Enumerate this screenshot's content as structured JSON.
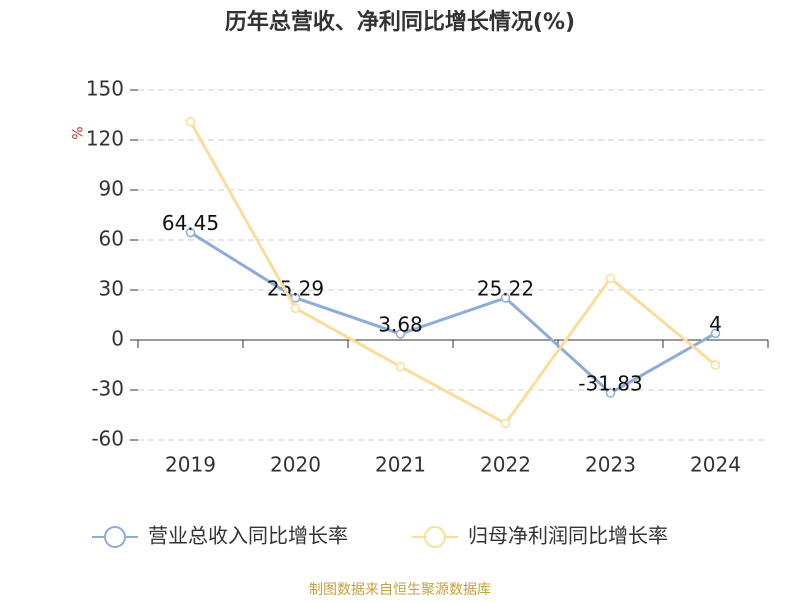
{
  "chart_data": {
    "type": "line",
    "title": "历年总营收、净利同比增长情况(%)",
    "y_axis_label": "%",
    "categories": [
      "2019",
      "2020",
      "2021",
      "2022",
      "2023",
      "2024"
    ],
    "series": [
      {
        "name": "营业总收入同比增长率",
        "color": "#8eacd8",
        "values": [
          64.45,
          25.29,
          3.68,
          25.22,
          -31.83,
          4
        ],
        "data_labels": true
      },
      {
        "name": "归母净利润同比增长率",
        "color": "#fcdc9c",
        "values": [
          131,
          19,
          -16,
          -50,
          37,
          -15
        ],
        "data_labels": false
      }
    ],
    "ylim": [
      -60,
      150
    ],
    "yticks": [
      -60,
      -30,
      0,
      30,
      60,
      90,
      120,
      150
    ],
    "grid": true,
    "legend": "bottom",
    "source": "制图数据来自恒生聚源数据库"
  }
}
